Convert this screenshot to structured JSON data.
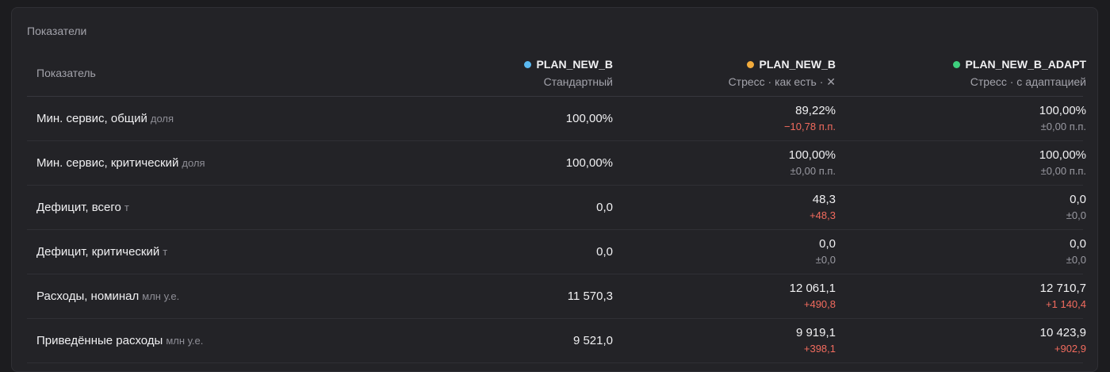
{
  "panel": {
    "title": "Показатели"
  },
  "table": {
    "header_label": "Показатель",
    "columns": [
      {
        "name": "PLAN_NEW_B",
        "subtitle": "Стандартный",
        "color": "#5ab8f0"
      },
      {
        "name": "PLAN_NEW_B",
        "subtitle": "Стресс · как есть · ",
        "close": "✕",
        "color": "#f2ab3c"
      },
      {
        "name": "PLAN_NEW_B_ADAPT",
        "subtitle": "Стресс · с адаптацией",
        "color": "#3ecf7e"
      }
    ],
    "rows": [
      {
        "label": "Мин. сервис, общий",
        "unit": "доля",
        "base": "100,00%",
        "c2": {
          "value": "89,22%",
          "delta": "−10,78 п.п.",
          "delta_tone": "neg"
        },
        "c3": {
          "value": "100,00%",
          "delta": "±0,00 п.п.",
          "delta_tone": "neutral"
        }
      },
      {
        "label": "Мин. сервис, критический",
        "unit": "доля",
        "base": "100,00%",
        "c2": {
          "value": "100,00%",
          "delta": "±0,00 п.п.",
          "delta_tone": "neutral"
        },
        "c3": {
          "value": "100,00%",
          "delta": "±0,00 п.п.",
          "delta_tone": "neutral"
        }
      },
      {
        "label": "Дефицит, всего",
        "unit": "т",
        "base": "0,0",
        "c2": {
          "value": "48,3",
          "delta": "+48,3",
          "delta_tone": "neg"
        },
        "c3": {
          "value": "0,0",
          "delta": "±0,0",
          "delta_tone": "neutral"
        }
      },
      {
        "label": "Дефицит, критический",
        "unit": "т",
        "base": "0,0",
        "c2": {
          "value": "0,0",
          "delta": "±0,0",
          "delta_tone": "neutral"
        },
        "c3": {
          "value": "0,0",
          "delta": "±0,0",
          "delta_tone": "neutral"
        }
      },
      {
        "label": "Расходы, номинал",
        "unit": "млн у.е.",
        "base": "11 570,3",
        "c2": {
          "value": "12 061,1",
          "delta": "+490,8",
          "delta_tone": "neg"
        },
        "c3": {
          "value": "12 710,7",
          "delta": "+1 140,4",
          "delta_tone": "neg"
        }
      },
      {
        "label": "Приведённые расходы",
        "unit": "млн у.е.",
        "base": "9 521,0",
        "c2": {
          "value": "9 919,1",
          "delta": "+398,1",
          "delta_tone": "neg"
        },
        "c3": {
          "value": "10 423,9",
          "delta": "+902,9",
          "delta_tone": "neg"
        }
      }
    ]
  }
}
